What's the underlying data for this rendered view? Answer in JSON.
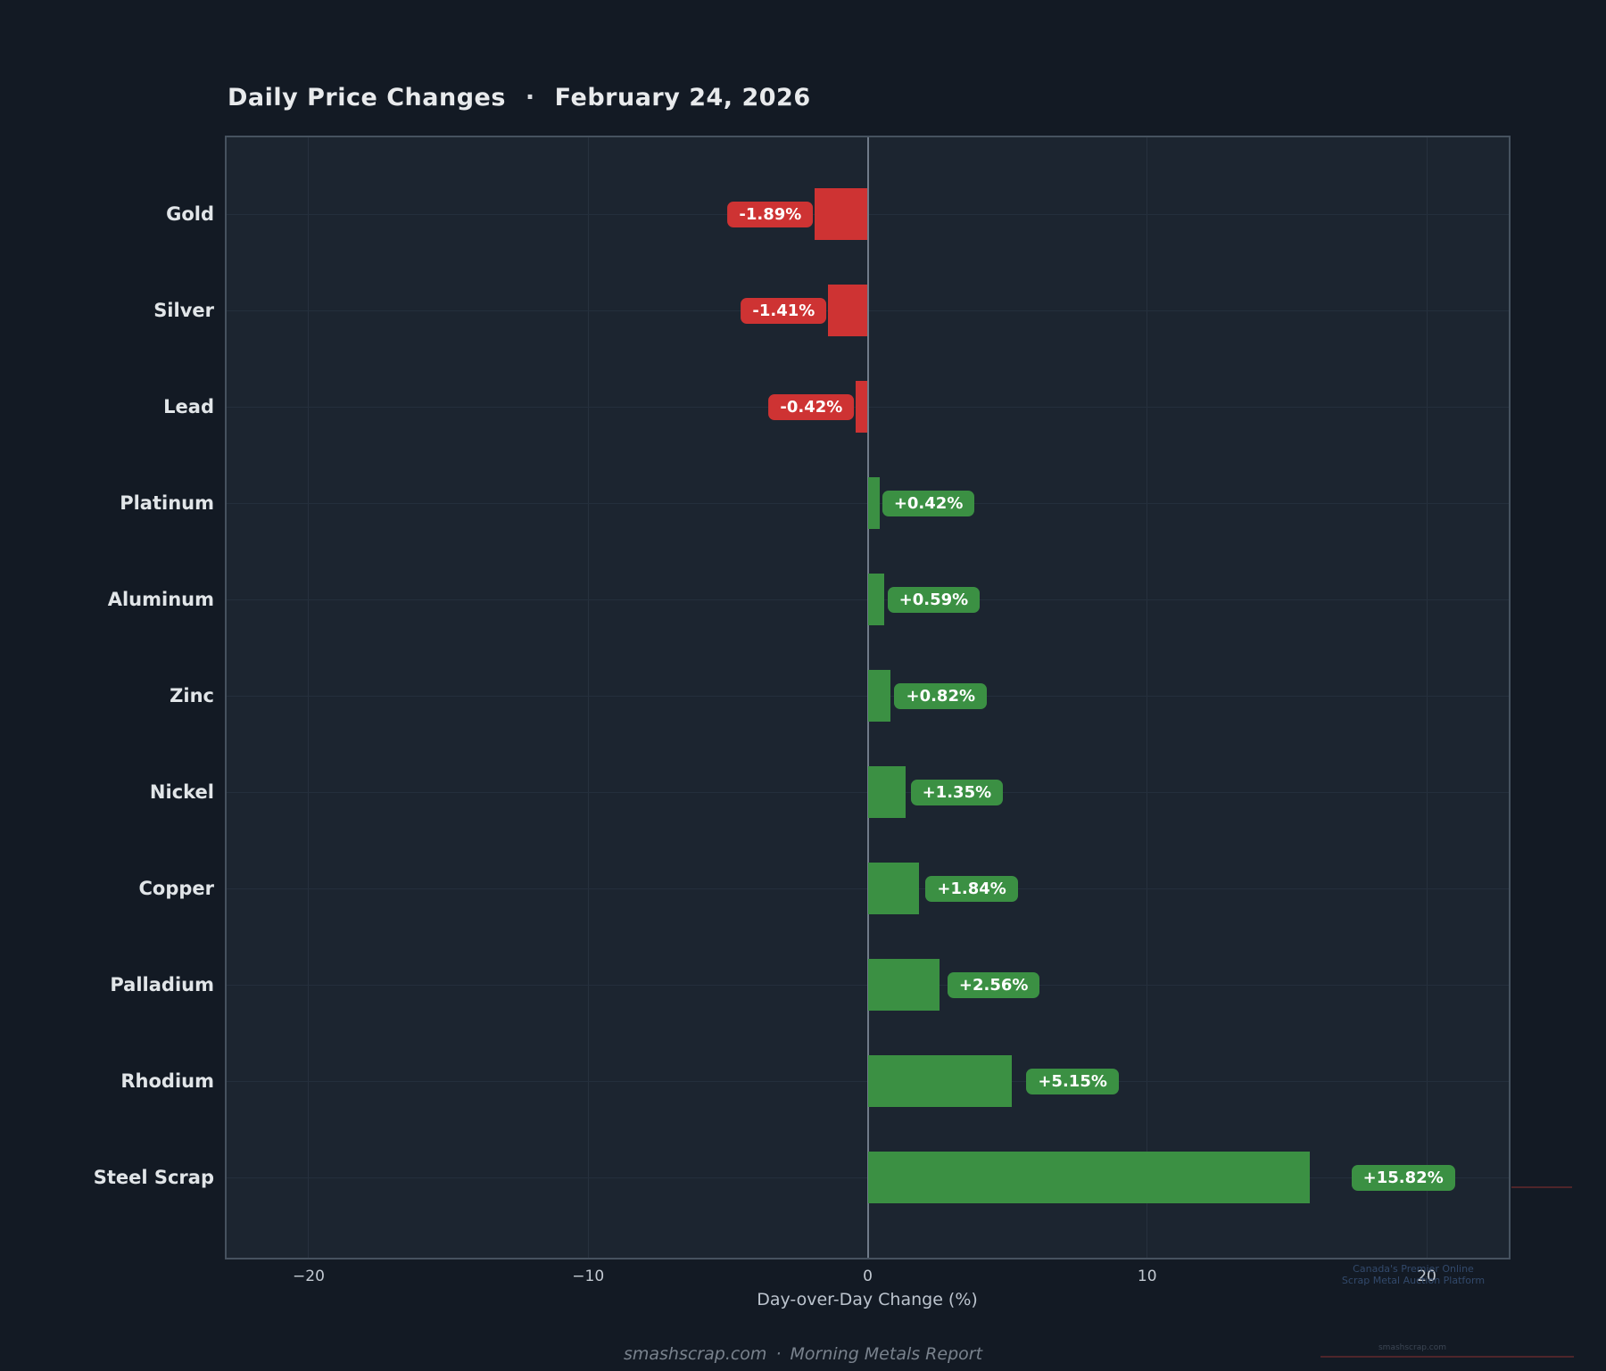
{
  "title": {
    "text": "Daily Price Changes",
    "separator": "·",
    "date": "February 24, 2026"
  },
  "chart_data": {
    "type": "bar",
    "orientation": "horizontal",
    "title": "Daily Price Changes · February 24, 2026",
    "categories": [
      "Gold",
      "Silver",
      "Lead",
      "Platinum",
      "Aluminum",
      "Zinc",
      "Nickel",
      "Copper",
      "Palladium",
      "Rhodium",
      "Steel Scrap"
    ],
    "values": [
      -1.89,
      -1.41,
      -0.42,
      0.42,
      0.59,
      0.82,
      1.35,
      1.84,
      2.56,
      5.15,
      15.82
    ],
    "bar_labels": [
      "-1.89%",
      "-1.41%",
      "-0.42%",
      "+0.42%",
      "+0.59%",
      "+0.82%",
      "+1.35%",
      "+1.84%",
      "+2.56%",
      "+5.15%",
      "+15.82%"
    ],
    "xlabel": "Day-over-Day Change (%)",
    "xlim": [
      -23,
      23
    ],
    "xticks": [
      -20,
      -10,
      0,
      10,
      20
    ],
    "xtick_labels": [
      "−20",
      "−10",
      "0",
      "10",
      "20"
    ],
    "colors": {
      "positive": "#3b9043",
      "negative": "#ce3333",
      "plot_background": "#1c2530",
      "page_background": "#131a24"
    },
    "grid": true,
    "legend": false
  },
  "footer": {
    "site": "smashscrap.com",
    "separator": "·",
    "report": "Morning Metals Report"
  },
  "watermark": {
    "line1": "Canada's Premier Online",
    "line2": "Scrap Metal Auction Platform",
    "domain": "smashscrap.com"
  }
}
